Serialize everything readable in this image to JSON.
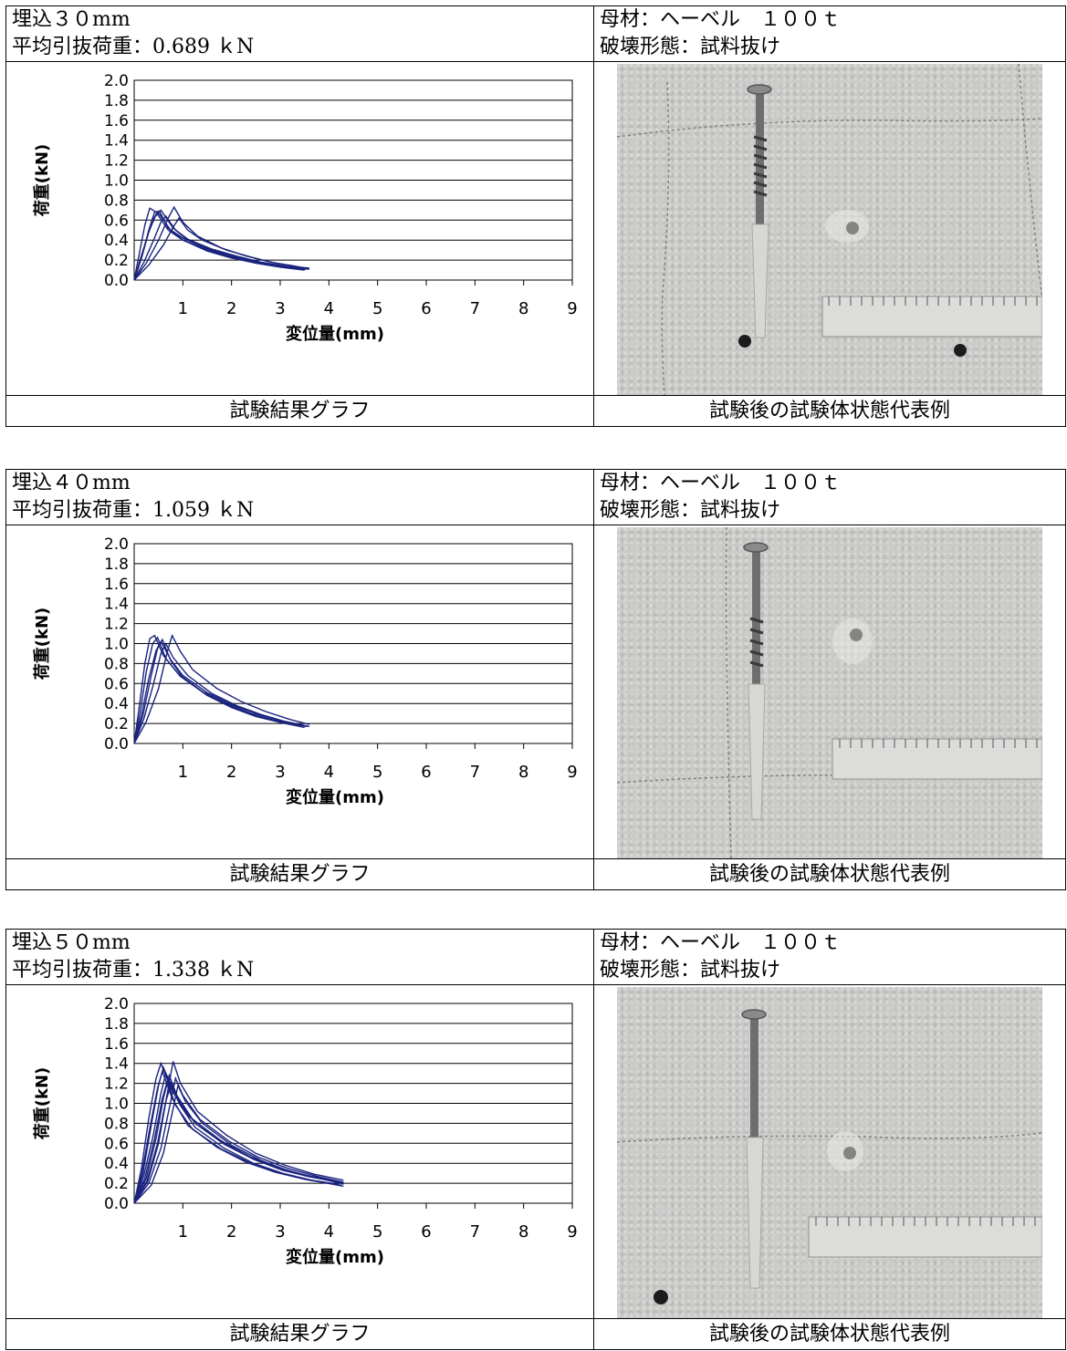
{
  "blocks": [
    {
      "embed_label": "埋込３０mm",
      "avg_load_label": "平均引抜荷重：0.689 ｋN",
      "material_label": "母材：ヘーベル　１００ｔ",
      "failure_label": "破壊形態：試料抜け",
      "graph_caption": "試験結果グラフ",
      "photo_caption": "試験後の試験体状態代表例"
    },
    {
      "embed_label": "埋込４０mm",
      "avg_load_label": "平均引抜荷重：1.059 ｋN",
      "material_label": "母材：ヘーベル　１００ｔ",
      "failure_label": "破壊形態：試料抜け",
      "graph_caption": "試験結果グラフ",
      "photo_caption": "試験後の試験体状態代表例"
    },
    {
      "embed_label": "埋込５０mm",
      "avg_load_label": "平均引抜荷重：1.338 ｋN",
      "material_label": "母材：ヘーベル　１００ｔ",
      "failure_label": "破壊形態：試料抜け",
      "graph_caption": "試験結果グラフ",
      "photo_caption": "試験後の試験体状態代表例"
    }
  ],
  "chart_data": [
    {
      "type": "line",
      "xlabel": "変位量(mm)",
      "ylabel": "荷重(kN)",
      "xlim": [
        0,
        9
      ],
      "ylim": [
        0,
        2.0
      ],
      "x_ticks": [
        "1",
        "2",
        "3",
        "4",
        "5",
        "6",
        "7",
        "8",
        "9"
      ],
      "y_ticks": [
        "0.0",
        "0.2",
        "0.4",
        "0.6",
        "0.8",
        "1.0",
        "1.2",
        "1.4",
        "1.6",
        "1.8",
        "2.0"
      ],
      "grid": true,
      "line_color": "#1a237e",
      "series": [
        {
          "x": [
            0,
            0.1,
            0.22,
            0.32,
            0.45,
            0.7,
            1.0,
            1.5,
            2.0,
            2.5,
            3.0,
            3.5
          ],
          "y": [
            0,
            0.25,
            0.55,
            0.72,
            0.68,
            0.5,
            0.4,
            0.3,
            0.23,
            0.17,
            0.13,
            0.1
          ]
        },
        {
          "x": [
            0,
            0.15,
            0.3,
            0.45,
            0.55,
            0.8,
            1.1,
            1.6,
            2.1,
            2.6,
            3.1,
            3.6
          ],
          "y": [
            0,
            0.22,
            0.48,
            0.66,
            0.7,
            0.52,
            0.41,
            0.31,
            0.24,
            0.18,
            0.14,
            0.11
          ]
        },
        {
          "x": [
            0,
            0.12,
            0.28,
            0.4,
            0.5,
            0.75,
            1.0,
            1.5,
            2.0,
            2.5,
            3.0,
            3.5
          ],
          "y": [
            0,
            0.2,
            0.45,
            0.62,
            0.67,
            0.5,
            0.4,
            0.29,
            0.22,
            0.17,
            0.13,
            0.1
          ]
        },
        {
          "x": [
            0,
            0.2,
            0.4,
            0.55,
            0.65,
            0.85,
            1.1,
            1.6,
            2.1,
            2.6,
            3.1,
            3.55
          ],
          "y": [
            0,
            0.18,
            0.4,
            0.58,
            0.64,
            0.5,
            0.4,
            0.3,
            0.23,
            0.17,
            0.13,
            0.11
          ]
        },
        {
          "x": [
            0,
            0.25,
            0.5,
            0.7,
            0.82,
            1.0,
            1.3,
            1.8,
            2.3,
            2.8,
            3.3,
            3.6
          ],
          "y": [
            0,
            0.17,
            0.4,
            0.62,
            0.73,
            0.58,
            0.44,
            0.32,
            0.24,
            0.18,
            0.14,
            0.11
          ]
        },
        {
          "x": [
            0,
            0.3,
            0.6,
            0.8,
            0.92,
            1.1,
            1.4,
            1.9,
            2.4,
            2.9,
            3.4,
            3.6
          ],
          "y": [
            0,
            0.15,
            0.35,
            0.53,
            0.62,
            0.5,
            0.4,
            0.3,
            0.23,
            0.17,
            0.13,
            0.12
          ]
        },
        {
          "x": [
            0,
            0.15,
            0.3,
            0.42,
            0.52,
            0.7,
            1.0,
            1.5,
            2.0,
            2.5,
            3.0,
            3.5
          ],
          "y": [
            0,
            0.22,
            0.5,
            0.68,
            0.69,
            0.52,
            0.42,
            0.31,
            0.24,
            0.18,
            0.14,
            0.11
          ]
        }
      ]
    },
    {
      "type": "line",
      "xlabel": "変位量(mm)",
      "ylabel": "荷重(kN)",
      "xlim": [
        0,
        9
      ],
      "ylim": [
        0,
        2.0
      ],
      "x_ticks": [
        "1",
        "2",
        "3",
        "4",
        "5",
        "6",
        "7",
        "8",
        "9"
      ],
      "y_ticks": [
        "0.0",
        "0.2",
        "0.4",
        "0.6",
        "0.8",
        "1.0",
        "1.2",
        "1.4",
        "1.6",
        "1.8",
        "2.0"
      ],
      "grid": true,
      "line_color": "#1a237e",
      "series": [
        {
          "x": [
            0,
            0.1,
            0.22,
            0.32,
            0.42,
            0.6,
            0.9,
            1.4,
            1.9,
            2.4,
            2.9,
            3.5
          ],
          "y": [
            0,
            0.35,
            0.8,
            1.05,
            1.08,
            0.88,
            0.7,
            0.52,
            0.4,
            0.3,
            0.23,
            0.18
          ]
        },
        {
          "x": [
            0,
            0.12,
            0.25,
            0.38,
            0.48,
            0.65,
            0.95,
            1.45,
            1.95,
            2.45,
            2.95,
            3.55
          ],
          "y": [
            0,
            0.3,
            0.72,
            1.0,
            1.06,
            0.85,
            0.67,
            0.5,
            0.38,
            0.29,
            0.22,
            0.17
          ]
        },
        {
          "x": [
            0,
            0.15,
            0.3,
            0.45,
            0.55,
            0.75,
            1.0,
            1.5,
            2.0,
            2.5,
            3.0,
            3.5
          ],
          "y": [
            0,
            0.28,
            0.65,
            0.93,
            1.02,
            0.84,
            0.68,
            0.51,
            0.39,
            0.3,
            0.23,
            0.18
          ]
        },
        {
          "x": [
            0,
            0.2,
            0.4,
            0.55,
            0.65,
            0.8,
            1.1,
            1.6,
            2.1,
            2.6,
            3.1,
            3.6
          ],
          "y": [
            0,
            0.25,
            0.6,
            0.9,
            1.0,
            0.86,
            0.68,
            0.5,
            0.38,
            0.29,
            0.22,
            0.17
          ]
        },
        {
          "x": [
            0,
            0.25,
            0.5,
            0.68,
            0.78,
            0.95,
            1.2,
            1.7,
            2.2,
            2.7,
            3.2,
            3.6
          ],
          "y": [
            0,
            0.22,
            0.55,
            0.92,
            1.08,
            0.92,
            0.74,
            0.55,
            0.42,
            0.32,
            0.24,
            0.19
          ]
        },
        {
          "x": [
            0,
            0.18,
            0.35,
            0.48,
            0.58,
            0.75,
            1.0,
            1.5,
            2.0,
            2.5,
            3.0,
            3.5
          ],
          "y": [
            0,
            0.28,
            0.68,
            0.95,
            1.04,
            0.83,
            0.66,
            0.48,
            0.36,
            0.27,
            0.21,
            0.16
          ]
        }
      ]
    },
    {
      "type": "line",
      "xlabel": "変位量(mm)",
      "ylabel": "荷重(kN)",
      "xlim": [
        0,
        9
      ],
      "ylim": [
        0,
        2.0
      ],
      "x_ticks": [
        "1",
        "2",
        "3",
        "4",
        "5",
        "6",
        "7",
        "8",
        "9"
      ],
      "y_ticks": [
        "0.0",
        "0.2",
        "0.4",
        "0.6",
        "0.8",
        "1.0",
        "1.2",
        "1.4",
        "1.6",
        "1.8",
        "2.0"
      ],
      "grid": true,
      "line_color": "#1a237e",
      "series": [
        {
          "x": [
            0,
            0.15,
            0.3,
            0.45,
            0.55,
            0.75,
            1.1,
            1.7,
            2.3,
            2.9,
            3.5,
            4.2
          ],
          "y": [
            0,
            0.35,
            0.85,
            1.25,
            1.4,
            1.15,
            0.88,
            0.65,
            0.48,
            0.36,
            0.28,
            0.22
          ]
        },
        {
          "x": [
            0,
            0.18,
            0.35,
            0.5,
            0.6,
            0.8,
            1.15,
            1.75,
            2.35,
            2.95,
            3.55,
            4.25
          ],
          "y": [
            0,
            0.3,
            0.78,
            1.18,
            1.36,
            1.12,
            0.86,
            0.63,
            0.47,
            0.35,
            0.27,
            0.21
          ]
        },
        {
          "x": [
            0,
            0.2,
            0.4,
            0.55,
            0.65,
            0.85,
            1.2,
            1.8,
            2.4,
            3.0,
            3.6,
            4.3
          ],
          "y": [
            0,
            0.28,
            0.7,
            1.1,
            1.3,
            1.1,
            0.84,
            0.62,
            0.46,
            0.35,
            0.27,
            0.21
          ]
        },
        {
          "x": [
            0,
            0.25,
            0.45,
            0.6,
            0.72,
            0.9,
            1.25,
            1.85,
            2.45,
            3.05,
            3.65,
            4.3
          ],
          "y": [
            0,
            0.25,
            0.65,
            1.05,
            1.28,
            1.05,
            0.8,
            0.59,
            0.44,
            0.33,
            0.26,
            0.2
          ]
        },
        {
          "x": [
            0,
            0.28,
            0.5,
            0.68,
            0.8,
            0.95,
            1.3,
            1.9,
            2.5,
            3.1,
            3.7,
            4.3
          ],
          "y": [
            0,
            0.22,
            0.6,
            1.1,
            1.42,
            1.2,
            0.92,
            0.68,
            0.5,
            0.38,
            0.29,
            0.23
          ]
        },
        {
          "x": [
            0,
            0.3,
            0.55,
            0.72,
            0.85,
            1.0,
            1.35,
            1.95,
            2.55,
            3.15,
            3.75,
            4.3
          ],
          "y": [
            0,
            0.2,
            0.55,
            0.95,
            1.25,
            1.08,
            0.84,
            0.62,
            0.46,
            0.35,
            0.27,
            0.21
          ]
        },
        {
          "x": [
            0,
            0.35,
            0.6,
            0.78,
            0.9,
            1.05,
            1.4,
            2.0,
            2.6,
            3.2,
            3.8,
            4.3
          ],
          "y": [
            0,
            0.18,
            0.5,
            0.9,
            1.18,
            1.02,
            0.8,
            0.58,
            0.43,
            0.32,
            0.25,
            0.19
          ]
        },
        {
          "x": [
            0,
            0.22,
            0.42,
            0.58,
            0.68,
            0.85,
            1.2,
            1.8,
            2.4,
            3.0,
            3.6,
            4.25
          ],
          "y": [
            0,
            0.25,
            0.65,
            1.05,
            1.22,
            0.98,
            0.74,
            0.54,
            0.4,
            0.3,
            0.23,
            0.18
          ]
        },
        {
          "x": [
            0,
            0.16,
            0.32,
            0.48,
            0.58,
            0.78,
            1.1,
            1.7,
            2.3,
            2.9,
            3.5,
            4.2
          ],
          "y": [
            0,
            0.3,
            0.75,
            1.15,
            1.32,
            1.05,
            0.78,
            0.56,
            0.41,
            0.31,
            0.24,
            0.19
          ]
        },
        {
          "x": [
            0,
            0.26,
            0.48,
            0.64,
            0.76,
            0.92,
            1.25,
            1.85,
            2.45,
            3.05,
            3.65,
            4.3
          ],
          "y": [
            0,
            0.22,
            0.6,
            1.0,
            1.2,
            1.0,
            0.76,
            0.55,
            0.4,
            0.3,
            0.23,
            0.17
          ]
        }
      ]
    }
  ]
}
